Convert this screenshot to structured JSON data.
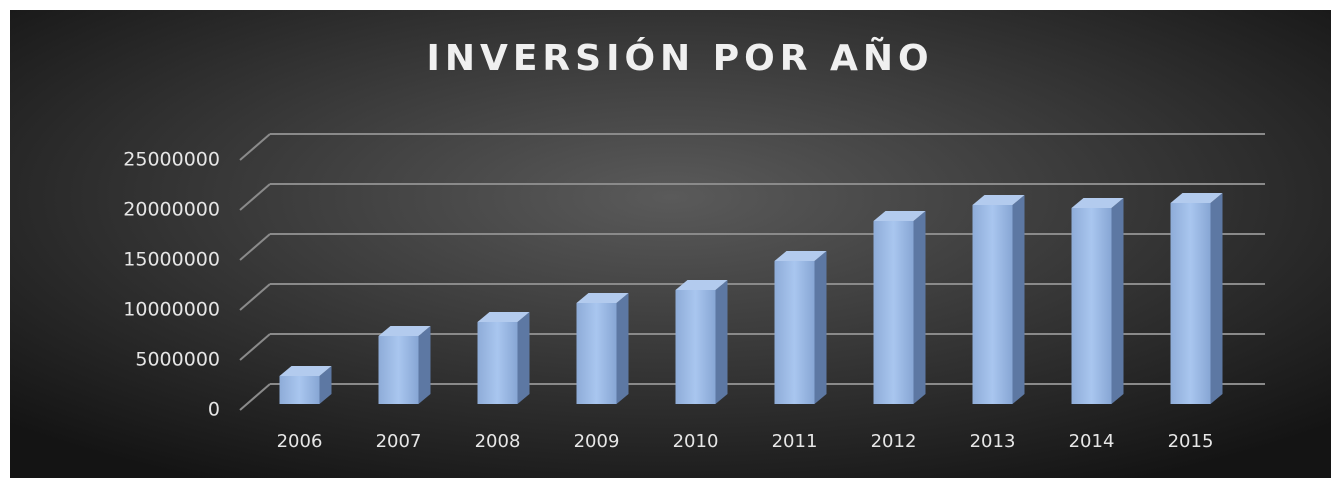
{
  "chart_data": {
    "type": "bar3d",
    "title": "INVERSIÓN POR AÑO",
    "categories": [
      "2006",
      "2007",
      "2008",
      "2009",
      "2010",
      "2011",
      "2012",
      "2013",
      "2014",
      "2015"
    ],
    "values": [
      2800000,
      6800000,
      8200000,
      10100000,
      11400000,
      14300000,
      18300000,
      19900000,
      19600000,
      20100000
    ],
    "color": "#8eb0e0",
    "ylim": [
      0,
      25000000
    ],
    "yticks": [
      0,
      5000000,
      10000000,
      15000000,
      20000000,
      25000000
    ],
    "grid": true
  }
}
